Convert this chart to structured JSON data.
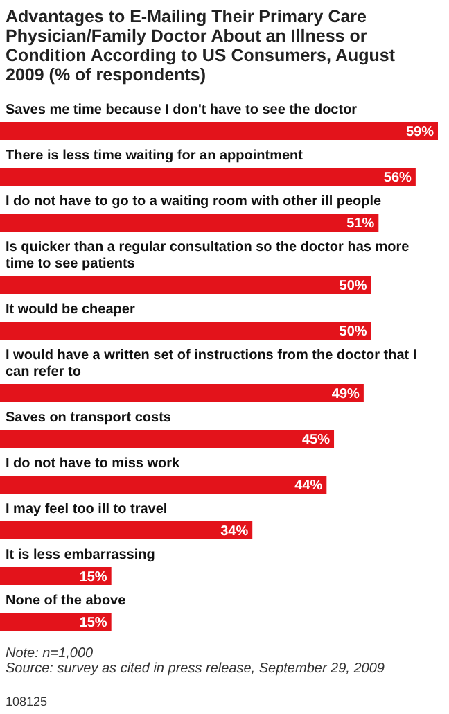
{
  "chart_data": {
    "type": "bar",
    "orientation": "horizontal",
    "title": "Advantages to E-Mailing Their Primary Care Physician/Family Doctor About an Illness or Condition According to US Consumers, August 2009 (% of respondents)",
    "categories": [
      "Saves me time because I don't have to see the doctor",
      "There is less time waiting for an appointment",
      "I do not have to go to a waiting room with other ill people",
      "Is quicker than a regular consultation so the doctor has more time to see patients",
      "It would be cheaper",
      "I would have a written set of instructions from the doctor that I can refer to",
      "Saves on transport costs",
      "I do not have to miss work",
      "I may feel too ill to travel",
      "It is less embarrassing",
      "None of the above"
    ],
    "values": [
      59,
      56,
      51,
      50,
      50,
      49,
      45,
      44,
      34,
      15,
      15
    ],
    "value_labels": [
      "59%",
      "56%",
      "51%",
      "50%",
      "50%",
      "49%",
      "45%",
      "44%",
      "34%",
      "15%",
      "15%"
    ],
    "color": "#e3131b",
    "annotations": [
      "Note: n=1,000",
      "Source: survey as cited in press release, September 29, 2009",
      "108125"
    ]
  }
}
